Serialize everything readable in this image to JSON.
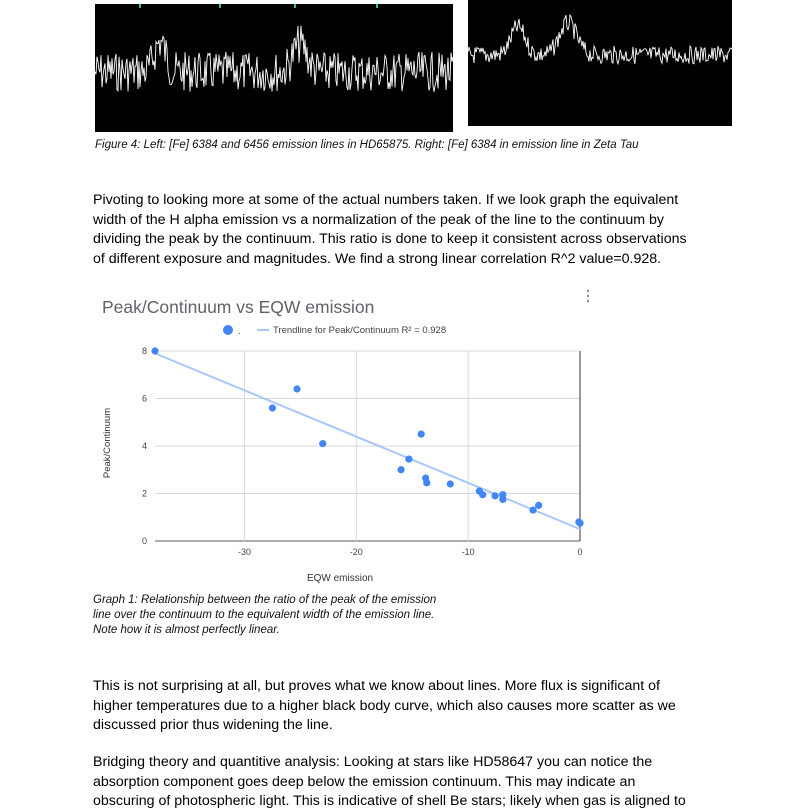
{
  "figure4": {
    "caption": "Figure 4: Left: [Fe] 6384 and 6456 emission lines in HD65875. Right: [Fe] 6384 in emission line in Zeta Tau"
  },
  "paragraphs": {
    "p1": "Pivoting to looking more at some of the actual numbers taken. If we look graph the equivalent width of the H alpha emission vs a normalization of the peak of the line to the continuum by dividing the peak by the continuum. This ratio is done to keep it consistent across observations of different exposure and magnitudes.  We find a strong linear correlation R^2 value=0.928.",
    "p2": "This is not surprising at all, but proves what we know about lines. More flux is significant of higher temperatures due to a higher black body curve, which also causes more scatter as we discussed prior thus widening the line.",
    "p3": "Bridging theory and quantitive analysis: Looking at stars like HD58647 you can notice the absorption component goes deep below the emission continuum. This may indicate an obscuring of photospheric light. This is indicative of shell Be stars; likely when gas is aligned to"
  },
  "chart_data": {
    "type": "scatter",
    "title": "Peak/Continuum vs EQW emission",
    "xlabel": "EQW emission",
    "ylabel": "Peak/Continuum",
    "xlim": [
      -38,
      0
    ],
    "ylim": [
      0,
      8
    ],
    "xticks": [
      -30,
      -20,
      -10,
      0
    ],
    "yticks": [
      0,
      2,
      4,
      6,
      8
    ],
    "grid": true,
    "legend_position": "top",
    "legend": {
      "series_label": ".",
      "trendline_label": "Trendline for Peak/Continuum  R² = 0.928"
    },
    "series": [
      {
        "points": [
          [
            -38,
            8.0
          ],
          [
            -27.5,
            5.6
          ],
          [
            -25.3,
            6.4
          ],
          [
            -23.0,
            4.1
          ],
          [
            -16.0,
            3.0
          ],
          [
            -15.3,
            3.45
          ],
          [
            -14.2,
            4.5
          ],
          [
            -13.8,
            2.65
          ],
          [
            -13.7,
            2.45
          ],
          [
            -11.6,
            2.4
          ],
          [
            -9.0,
            2.1
          ],
          [
            -8.7,
            1.95
          ],
          [
            -7.6,
            1.9
          ],
          [
            -6.9,
            1.95
          ],
          [
            -6.9,
            1.75
          ],
          [
            -4.2,
            1.3
          ],
          [
            -3.7,
            1.5
          ],
          [
            -0.1,
            0.8
          ],
          [
            0.0,
            0.75
          ]
        ]
      }
    ],
    "trendline": {
      "x": [
        -38,
        0
      ],
      "y": [
        7.9,
        0.5
      ]
    },
    "colors": {
      "points": "#4285f4",
      "trendline": "#a8c7fa",
      "grid": "#d9d9d9"
    }
  },
  "graph1": {
    "caption": "Graph 1: Relationship between the ratio of the peak of the emission line over the continuum to the equivalent width of the emission line. Note how it is almost perfectly linear."
  }
}
